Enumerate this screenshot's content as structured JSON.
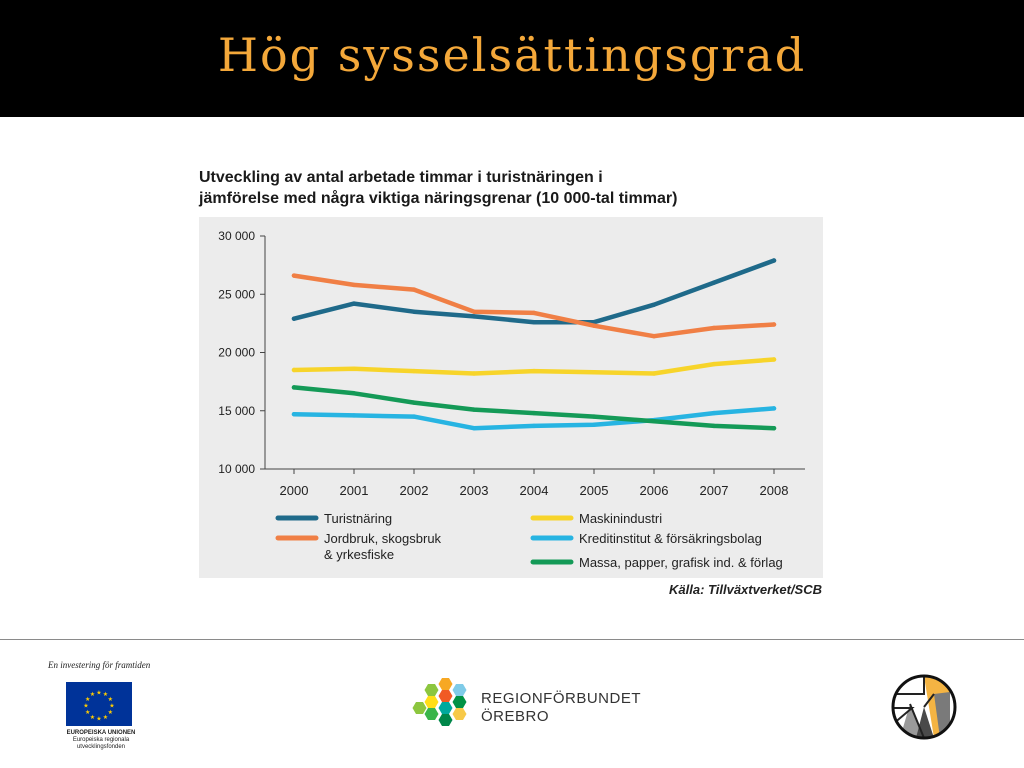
{
  "slide": {
    "title": "Hög sysselsättingsgrad"
  },
  "chart_title": {
    "line1": "Utveckling av antal arbetade timmar i turistnäringen i",
    "line2": "jämförelse med några viktiga näringsgrenar (10 000-tal timmar)"
  },
  "source": "Källa: Tillväxtverket/SCB",
  "footer": {
    "eu_tagline": "En investering för framtiden",
    "eu_caption_1": "EUROPEISKA UNIONEN",
    "eu_caption_2": "Europeiska regionala",
    "eu_caption_3": "utvecklingsfonden",
    "region_line1": "REGIONFÖRBUNDET",
    "region_line2": "ÖREBRO"
  },
  "colors": {
    "header_bg": "#000000",
    "title": "#f4a83a",
    "panel": "#ececec",
    "eu_blue": "#003399",
    "eu_star": "#ffcc00"
  },
  "icons": [
    "eu-flag-icon",
    "regionforbundet-logo-icon",
    "corner-logo-icon"
  ],
  "chart_data": {
    "type": "line",
    "x": [
      "2000",
      "2001",
      "2002",
      "2003",
      "2004",
      "2005",
      "2006",
      "2007",
      "2008"
    ],
    "ylim": [
      10000,
      30000
    ],
    "yticks": [
      10000,
      15000,
      20000,
      25000,
      30000
    ],
    "ytick_labels": [
      "10 000",
      "15 000",
      "20 000",
      "25 000",
      "30 000"
    ],
    "grid": false,
    "legend_position": "bottom",
    "series": [
      {
        "name": "Turistnäring",
        "color": "#1f6a8a",
        "values": [
          22900,
          24200,
          23500,
          23100,
          22600,
          22600,
          24100,
          26000,
          27900
        ]
      },
      {
        "name": "Jordbruk, skogsbruk & yrkesfiske",
        "color": "#f07f45",
        "values": [
          26600,
          25800,
          25400,
          23500,
          23400,
          22300,
          21400,
          22100,
          22400
        ]
      },
      {
        "name": "Maskinindustri",
        "color": "#f7d42a",
        "values": [
          18500,
          18600,
          18400,
          18200,
          18400,
          18300,
          18200,
          19000,
          19400
        ]
      },
      {
        "name": "Kreditinstitut & försäkringsbolag",
        "color": "#27b4e2",
        "values": [
          14700,
          14600,
          14500,
          13500,
          13700,
          13800,
          14200,
          14800,
          15200
        ]
      },
      {
        "name": "Massa, papper, grafisk ind. & förlag",
        "color": "#149a57",
        "values": [
          17000,
          16500,
          15700,
          15100,
          14800,
          14500,
          14100,
          13700,
          13500
        ]
      }
    ],
    "legend": [
      {
        "line1": "Turistnäring",
        "line2": "",
        "color": "#1f6a8a"
      },
      {
        "line1": "Maskinindustri",
        "line2": "",
        "color": "#f7d42a"
      },
      {
        "line1": "Jordbruk, skogsbruk",
        "line2": "& yrkesfiske",
        "color": "#f07f45"
      },
      {
        "line1": "Kreditinstitut & försäkringsbolag",
        "line2": "",
        "color": "#27b4e2"
      },
      {
        "line1": "Massa, papper, grafisk ind. & förlag",
        "line2": "",
        "color": "#149a57"
      }
    ]
  }
}
